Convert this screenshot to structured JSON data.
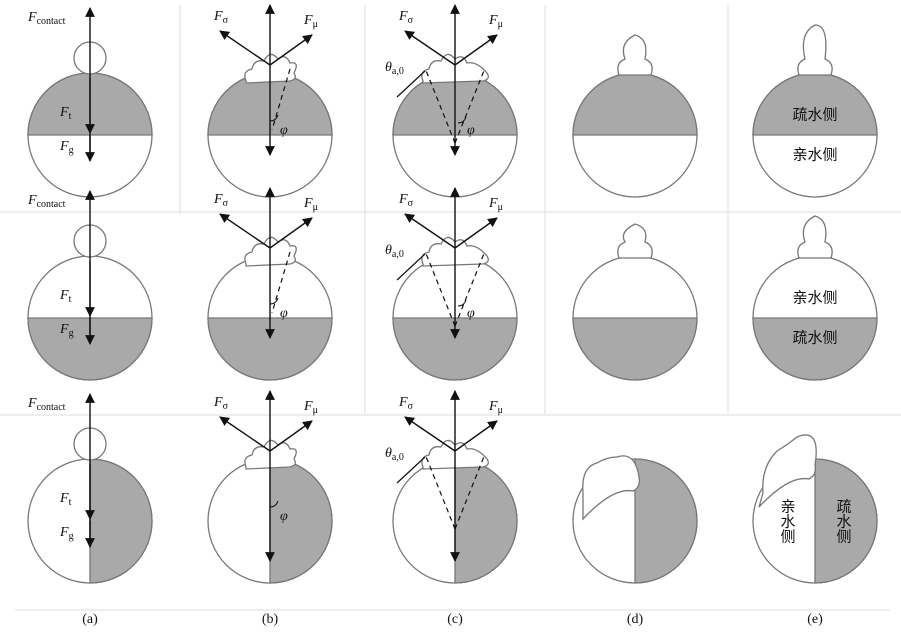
{
  "forces": {
    "contact": {
      "symbol": "F",
      "sub": "contact"
    },
    "t": {
      "symbol": "F",
      "sub": "t"
    },
    "g": {
      "symbol": "F",
      "sub": "g"
    },
    "sigma": {
      "symbol": "F",
      "sub": "σ"
    },
    "mu": {
      "symbol": "F",
      "sub": "μ"
    },
    "phi": {
      "symbol": "φ"
    },
    "theta": {
      "symbol": "θ",
      "sub": "a,0"
    }
  },
  "regions": {
    "hydrophobic": "疏水侧",
    "hydrophilic": "亲水侧"
  },
  "captions": [
    "(a)",
    "(b)",
    "(c)",
    "(d)",
    "(e)"
  ]
}
